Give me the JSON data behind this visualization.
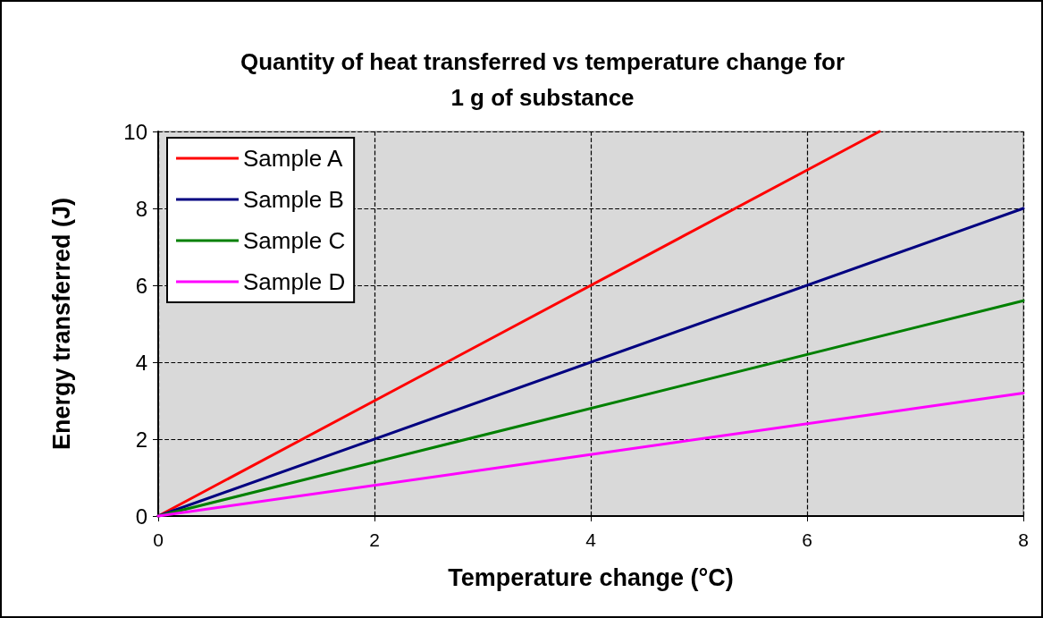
{
  "chart_data": {
    "type": "line",
    "title": "Quantity of heat transferred vs temperature change for\n1 g of substance",
    "xlabel": "Temperature change (°C)",
    "ylabel": "Energy transferred (J)",
    "series": [
      {
        "name": "Sample A",
        "color": "#ff0000",
        "x": [
          0,
          6.67
        ],
        "values": [
          0,
          10
        ]
      },
      {
        "name": "Sample B",
        "color": "#000080",
        "x": [
          0,
          8
        ],
        "values": [
          0,
          8
        ]
      },
      {
        "name": "Sample C",
        "color": "#008000",
        "x": [
          0,
          8
        ],
        "values": [
          0,
          5.6
        ]
      },
      {
        "name": "Sample D",
        "color": "#ff00ff",
        "x": [
          0,
          8
        ],
        "values": [
          0,
          3.2
        ]
      }
    ],
    "xlim": [
      0,
      8
    ],
    "xticks": [
      0,
      2,
      4,
      6,
      8
    ],
    "ylim": [
      0,
      10
    ],
    "yticks": [
      0,
      2,
      4,
      6,
      8,
      10
    ],
    "grid": true,
    "legend": "top left",
    "marker": "none",
    "line_style": "solid"
  }
}
